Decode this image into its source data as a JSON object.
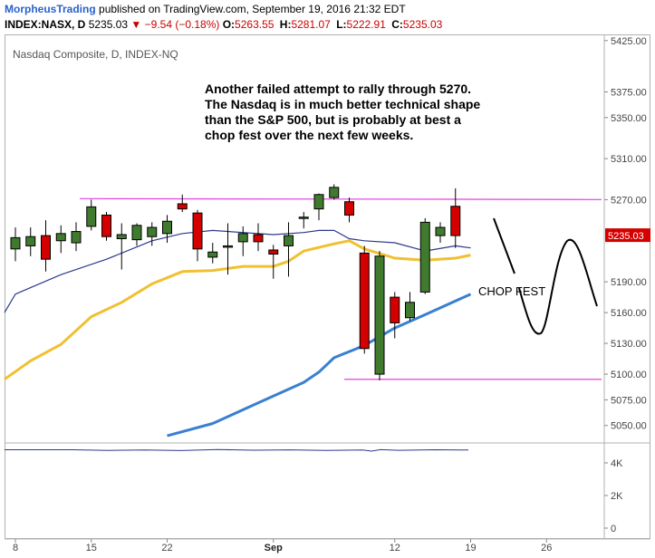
{
  "header": {
    "author": "MorpheusTrading",
    "published_text": "published on TradingView.com, September 19, 2016 21:32 EDT",
    "symbol": "INDEX:NASX, D",
    "last": "5235.03",
    "change": "▼ −9.54 (−0.18%)",
    "ohlc": [
      {
        "key": "O:",
        "value": "5263.55"
      },
      {
        "key": "H:",
        "value": "5281.07"
      },
      {
        "key": "L:",
        "value": "5222.91"
      },
      {
        "key": "C:",
        "value": "5235.03"
      }
    ]
  },
  "chart_data": {
    "type": "candlestick",
    "title": "Nasdaq Composite, D, INDEX-NQ",
    "y_ticks": [
      "5425.00",
      "5375.00",
      "5350.00",
      "5310.00",
      "5270.00",
      "5190.00",
      "5160.00",
      "5130.00",
      "5100.00",
      "5075.00",
      "5050.00"
    ],
    "y_tick_values": [
      5425,
      5375,
      5350,
      5310,
      5270,
      5190,
      5160,
      5130,
      5100,
      5075,
      5050
    ],
    "ylim": [
      5033,
      5431
    ],
    "x_labels": [
      "8",
      "15",
      "22",
      "Sep",
      "12",
      "19",
      "26"
    ],
    "x_label_days": [
      0,
      5,
      10,
      17,
      25,
      30,
      35
    ],
    "last_price_tag": "5235.03",
    "last_price": 5235.03,
    "candles": [
      {
        "d": 0,
        "o": 5222,
        "h": 5243,
        "l": 5210,
        "c": 5233
      },
      {
        "d": 1,
        "o": 5225,
        "h": 5243,
        "l": 5215,
        "c": 5234
      },
      {
        "d": 2,
        "o": 5235,
        "h": 5250,
        "l": 5200,
        "c": 5212
      },
      {
        "d": 3,
        "o": 5230,
        "h": 5245,
        "l": 5218,
        "c": 5237
      },
      {
        "d": 4,
        "o": 5228,
        "h": 5248,
        "l": 5220,
        "c": 5239
      },
      {
        "d": 5,
        "o": 5244,
        "h": 5270,
        "l": 5240,
        "c": 5263
      },
      {
        "d": 6,
        "o": 5255,
        "h": 5258,
        "l": 5230,
        "c": 5234
      },
      {
        "d": 7,
        "o": 5232,
        "h": 5247,
        "l": 5202,
        "c": 5236
      },
      {
        "d": 8,
        "o": 5231,
        "h": 5247,
        "l": 5225,
        "c": 5245
      },
      {
        "d": 9,
        "o": 5234,
        "h": 5248,
        "l": 5225,
        "c": 5243
      },
      {
        "d": 10,
        "o": 5237,
        "h": 5255,
        "l": 5228,
        "c": 5249
      },
      {
        "d": 11,
        "o": 5266,
        "h": 5275,
        "l": 5258,
        "c": 5261
      },
      {
        "d": 12,
        "o": 5257,
        "h": 5260,
        "l": 5210,
        "c": 5222
      },
      {
        "d": 13,
        "o": 5214,
        "h": 5228,
        "l": 5208,
        "c": 5219
      },
      {
        "d": 14,
        "o": 5225,
        "h": 5247,
        "l": 5197,
        "c": 5225
      },
      {
        "d": 15,
        "o": 5229,
        "h": 5244,
        "l": 5215,
        "c": 5237
      },
      {
        "d": 16,
        "o": 5236,
        "h": 5247,
        "l": 5220,
        "c": 5229
      },
      {
        "d": 17,
        "o": 5221,
        "h": 5226,
        "l": 5193,
        "c": 5217
      },
      {
        "d": 18,
        "o": 5225,
        "h": 5248,
        "l": 5195,
        "c": 5235
      },
      {
        "d": 19,
        "o": 5253,
        "h": 5258,
        "l": 5242,
        "c": 5253
      },
      {
        "d": 20,
        "o": 5261,
        "h": 5276,
        "l": 5250,
        "c": 5275
      },
      {
        "d": 21,
        "o": 5272,
        "h": 5285,
        "l": 5270,
        "c": 5282
      },
      {
        "d": 22,
        "o": 5268,
        "h": 5272,
        "l": 5248,
        "c": 5255
      },
      {
        "d": 23,
        "o": 5218,
        "h": 5225,
        "l": 5120,
        "c": 5125
      },
      {
        "d": 24,
        "o": 5100,
        "h": 5220,
        "l": 5094,
        "c": 5215
      },
      {
        "d": 25,
        "o": 5175,
        "h": 5180,
        "l": 5135,
        "c": 5150
      },
      {
        "d": 26,
        "o": 5155,
        "h": 5180,
        "l": 5152,
        "c": 5170
      },
      {
        "d": 27,
        "o": 5180,
        "h": 5252,
        "l": 5178,
        "c": 5248
      },
      {
        "d": 28,
        "o": 5235,
        "h": 5248,
        "l": 5228,
        "c": 5243
      },
      {
        "d": 29,
        "o": 5263.55,
        "h": 5281.07,
        "l": 5222.91,
        "c": 5235.03
      }
    ],
    "series": [
      {
        "color": "#2b3a8c",
        "values": [
          [
            -1,
            5160
          ],
          [
            0,
            5178
          ],
          [
            3,
            5197
          ],
          [
            6,
            5212
          ],
          [
            9,
            5230
          ],
          [
            11,
            5237
          ],
          [
            13,
            5240
          ],
          [
            15,
            5238
          ],
          [
            17,
            5236
          ],
          [
            19,
            5238
          ],
          [
            20,
            5240
          ],
          [
            21,
            5240
          ],
          [
            22,
            5232
          ],
          [
            23,
            5230
          ],
          [
            25,
            5228
          ],
          [
            27,
            5220
          ],
          [
            29,
            5225
          ],
          [
            30,
            5223
          ]
        ]
      },
      {
        "color": "#f0c030",
        "values": [
          [
            -1,
            5095
          ],
          [
            1,
            5113
          ],
          [
            3,
            5129
          ],
          [
            5,
            5156
          ],
          [
            7,
            5170
          ],
          [
            9,
            5188
          ],
          [
            11,
            5200
          ],
          [
            13,
            5201
          ],
          [
            15,
            5205
          ],
          [
            17,
            5205
          ],
          [
            18,
            5210
          ],
          [
            19,
            5220
          ],
          [
            21,
            5227
          ],
          [
            22,
            5230
          ],
          [
            23,
            5222
          ],
          [
            25,
            5213
          ],
          [
            27,
            5211
          ],
          [
            29,
            5213
          ],
          [
            30,
            5216
          ]
        ]
      },
      {
        "color": "#3a7fd0",
        "values": [
          [
            10,
            5040
          ],
          [
            13,
            5052
          ],
          [
            16,
            5072
          ],
          [
            19,
            5092
          ],
          [
            20,
            5102
          ],
          [
            21,
            5116
          ],
          [
            23,
            5128
          ],
          [
            25,
            5145
          ],
          [
            27,
            5158
          ],
          [
            30,
            5178
          ]
        ]
      }
    ],
    "resistance": 5271,
    "support": 5095,
    "volume_ticks": [
      "4K",
      "2K",
      "0"
    ],
    "volume_tick_values": [
      4000,
      2000,
      0
    ],
    "volume_ylim": [
      0,
      5000
    ],
    "volume_line": 5000
  },
  "annotations": {
    "note_lines": [
      "Another failed attempt to rally through 5270.",
      "The Nasdaq is in much better technical shape",
      "than the S&P 500, but is probably at best a",
      "chop fest over the next few weeks."
    ],
    "chop_label": "CHOP FEST"
  },
  "colors": {
    "up": "#3f7a2e",
    "down": "#d40000",
    "level_line": "#e040e0",
    "sketch": "#000000",
    "price_tag": "#d40000",
    "volume_line": "#2b3a8c"
  }
}
